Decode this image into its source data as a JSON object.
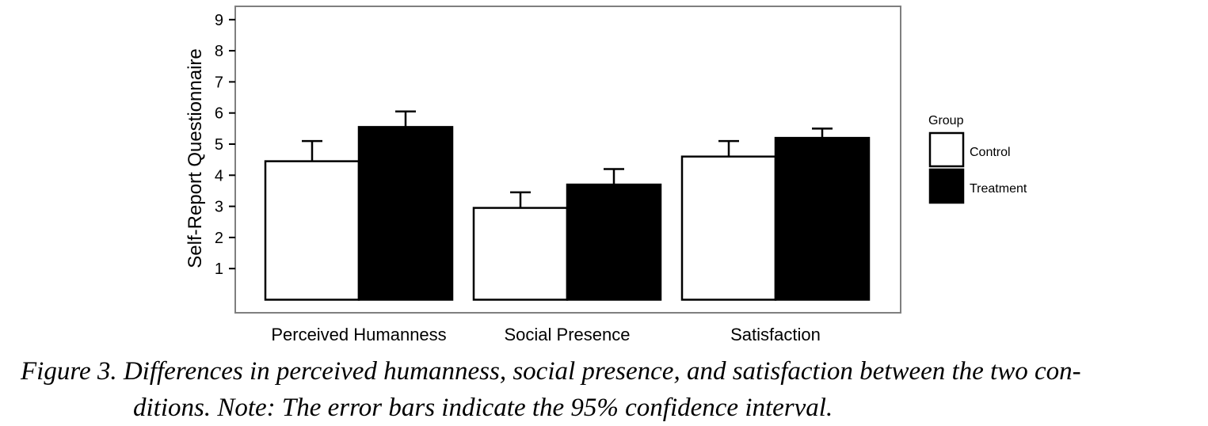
{
  "chart_data": {
    "type": "bar",
    "categories": [
      "Perceived Humanness",
      "Social Presence",
      "Satisfaction"
    ],
    "series": [
      {
        "name": "Control",
        "values": [
          4.45,
          2.95,
          4.6
        ],
        "ci_upper": [
          5.1,
          3.45,
          5.1
        ],
        "color": "#ffffff"
      },
      {
        "name": "Treatment",
        "values": [
          5.55,
          3.7,
          5.2
        ],
        "ci_upper": [
          6.05,
          4.2,
          5.5
        ],
        "color": "#000000"
      }
    ],
    "xlabel": "",
    "ylabel": "Self-Report Questionnaire",
    "ylim": [
      0,
      9
    ],
    "yticks": [
      "1",
      "2",
      "3",
      "4",
      "5",
      "6",
      "7",
      "8",
      "9"
    ],
    "grid": false,
    "legend": {
      "title": "Group",
      "position": "right"
    }
  },
  "caption": {
    "line1": "Figure 3. Differences in perceived humanness, social presence, and satisfaction between the two con-",
    "line2": "ditions. Note: The error bars indicate the 95% confidence interval."
  }
}
